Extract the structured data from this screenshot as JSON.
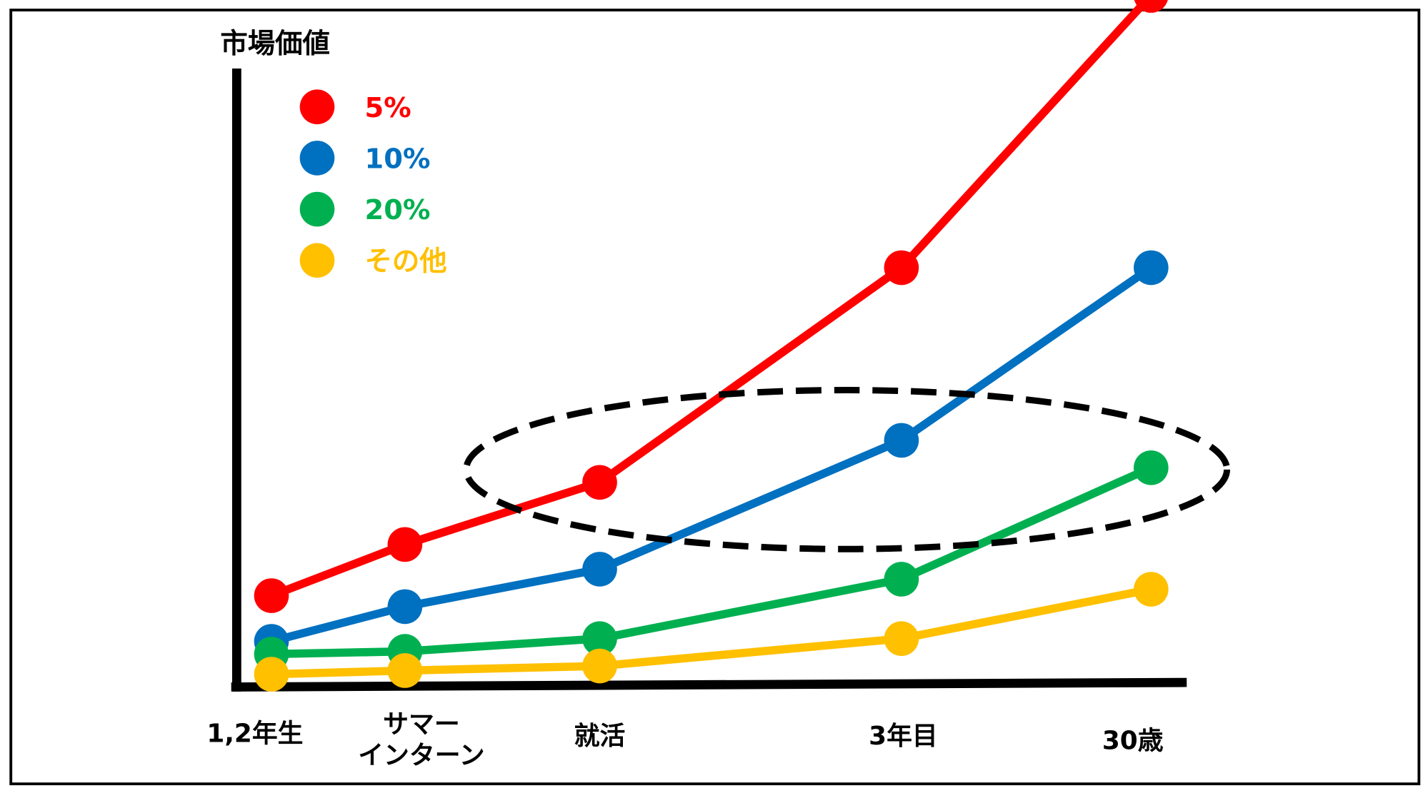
{
  "chart_data": {
    "type": "line",
    "title": "",
    "ylabel": "市場価値",
    "xlabel": "",
    "categories": [
      "1,2年生",
      "サマーインターン",
      "就活",
      "3年目",
      "30歳"
    ],
    "category_lines": [
      [
        "1,2年生"
      ],
      [
        "サマー",
        "インターン"
      ],
      [
        "就活"
      ],
      [
        "3年目"
      ],
      [
        "30歳"
      ]
    ],
    "ylim": [
      0,
      75
    ],
    "grid": false,
    "legend_position": "top-left",
    "series": [
      {
        "name": "5%",
        "color": "#ff0000",
        "values": [
          10,
          15.6,
          22.4,
          45.9,
          75.7
        ]
      },
      {
        "name": "10%",
        "color": "#0070c0",
        "values": [
          5,
          8.8,
          12.9,
          27,
          45.9
        ]
      },
      {
        "name": "20%",
        "color": "#00b050",
        "values": [
          3.6,
          3.9,
          5.3,
          11.8,
          24
        ]
      },
      {
        "name": "その他",
        "color": "#ffc000",
        "values": [
          1.4,
          1.8,
          2.3,
          5.3,
          10.7
        ]
      }
    ],
    "annotations": [
      {
        "type": "dashed-ellipse",
        "note": "highlight region around 就活〜30歳"
      }
    ]
  }
}
